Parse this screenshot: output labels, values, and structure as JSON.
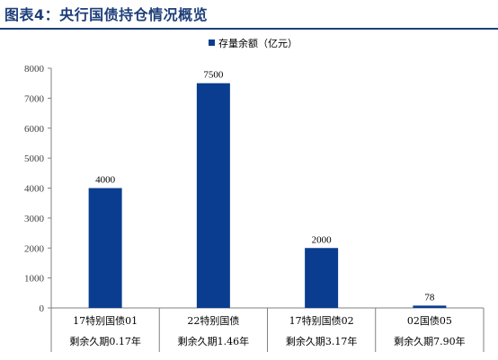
{
  "page_title": "图表4：央行国债持仓情况概览",
  "chart_data": {
    "type": "bar",
    "categories": [
      "17特别国债01",
      "22特别国债",
      "17特别国债02",
      "02国债05"
    ],
    "sublabels": [
      "剩余久期0.17年",
      "剩余久期1.46年",
      "剩余久期3.17年",
      "剩余久期7.90年"
    ],
    "series": [
      {
        "name": "存量余额（亿元）",
        "values": [
          4000,
          7500,
          2000,
          78
        ],
        "color": "#0a3d8f"
      }
    ],
    "ylim": [
      0,
      8000
    ],
    "yticks": [
      0,
      1000,
      2000,
      3000,
      4000,
      5000,
      6000,
      7000,
      8000
    ],
    "data_labels": [
      "4000",
      "7500",
      "2000",
      "78"
    ],
    "legend_position": "top-center",
    "grid": false
  }
}
